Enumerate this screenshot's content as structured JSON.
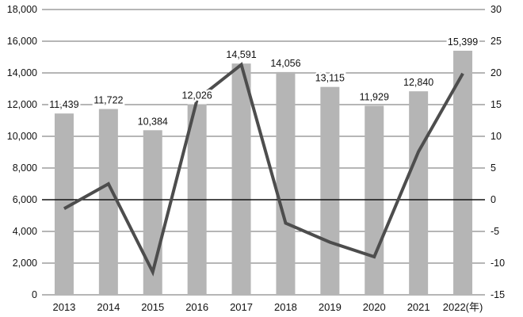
{
  "chart_data": {
    "type": "bar+line",
    "title": "",
    "categories": [
      "2013",
      "2014",
      "2015",
      "2016",
      "2017",
      "2018",
      "2019",
      "2020",
      "2021",
      "2022(年)"
    ],
    "series": [
      {
        "name": "amount-bars",
        "chart": "bar",
        "axis": "left",
        "values": [
          11439,
          11722,
          10384,
          12026,
          14591,
          14056,
          13115,
          11929,
          12840,
          15399
        ],
        "labels": [
          "11,439",
          "11,722",
          "10,384",
          "12,026",
          "14,591",
          "14,056",
          "13,115",
          "11,929",
          "12,840",
          "15,399"
        ]
      },
      {
        "name": "yoy-growth-line",
        "chart": "line",
        "axis": "right",
        "values": [
          -1.4,
          2.5,
          -11.4,
          15.8,
          21.3,
          -3.7,
          -6.7,
          -9.0,
          7.6,
          19.9
        ]
      }
    ],
    "left_axis": {
      "min": 0,
      "max": 18000,
      "step": 2000,
      "tick_labels": [
        "18,000",
        "16,000",
        "14,000",
        "12,000",
        "10,000",
        "8,000",
        "6,000",
        "4,000",
        "2,000",
        "0"
      ]
    },
    "right_axis": {
      "min": -15,
      "max": 30,
      "step": 5,
      "zero_value": 0,
      "tick_labels": [
        "30",
        "25",
        "20",
        "15",
        "10",
        "5",
        "0",
        "-5",
        "-10",
        "-15"
      ]
    },
    "grid": true,
    "legend": "none",
    "colors": {
      "bar": "#b5b5b5",
      "line": "#4d4d4d",
      "grid": "#6e6e6e",
      "zero_line": "#111111",
      "text": "#111111",
      "background": "#ffffff"
    }
  }
}
